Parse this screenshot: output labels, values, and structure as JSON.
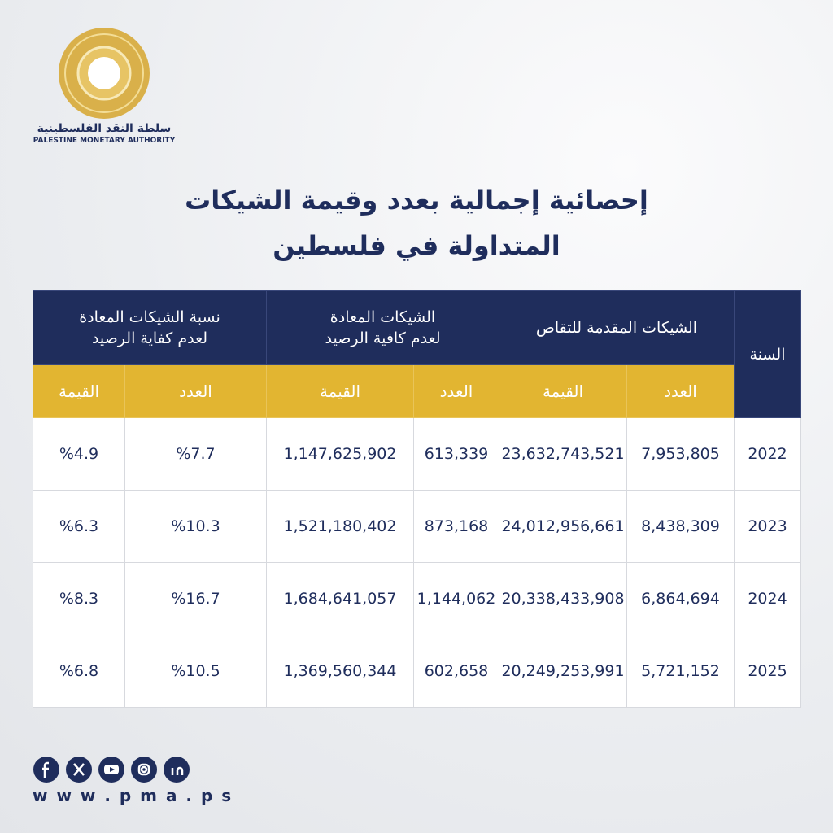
{
  "logo": {
    "arabic": "سلطة النقد الفلسطينية",
    "english": "PALESTINE MONETARY AUTHORITY"
  },
  "title": [
    "إحصائية إجمالية بعدد وقيمة الشيكات",
    "المتداولة في فلسطين"
  ],
  "table": {
    "year_header": "السنة",
    "groups": [
      [
        "الشيكات المقدمة للتقاص"
      ],
      [
        "الشيكات المعادة",
        "لعدم كافية الرصيد"
      ],
      [
        "نسبة الشيكات المعادة",
        "لعدم كفاية الرصيد"
      ]
    ],
    "subheaders": [
      "العدد",
      "القيمة",
      "العدد",
      "القيمة",
      "العدد",
      "القيمة"
    ],
    "rows": [
      [
        "2022",
        "7,953,805",
        "23,632,743,521",
        "613,339",
        "1,147,625,902",
        "%7.7",
        "%4.9"
      ],
      [
        "2023",
        "8,438,309",
        "24,012,956,661",
        "873,168",
        "1,521,180,402",
        "%10.3",
        "%6.3"
      ],
      [
        "2024",
        "6,864,694",
        "20,338,433,908",
        "1,144,062",
        "1,684,641,057",
        "%16.7",
        "%8.3"
      ],
      [
        "2025",
        "5,721,152",
        "20,249,253,991",
        "602,658",
        "1,369,560,344",
        "%10.5",
        "%6.8"
      ]
    ]
  },
  "footer": {
    "url": "w w w . p m a . p s"
  }
}
